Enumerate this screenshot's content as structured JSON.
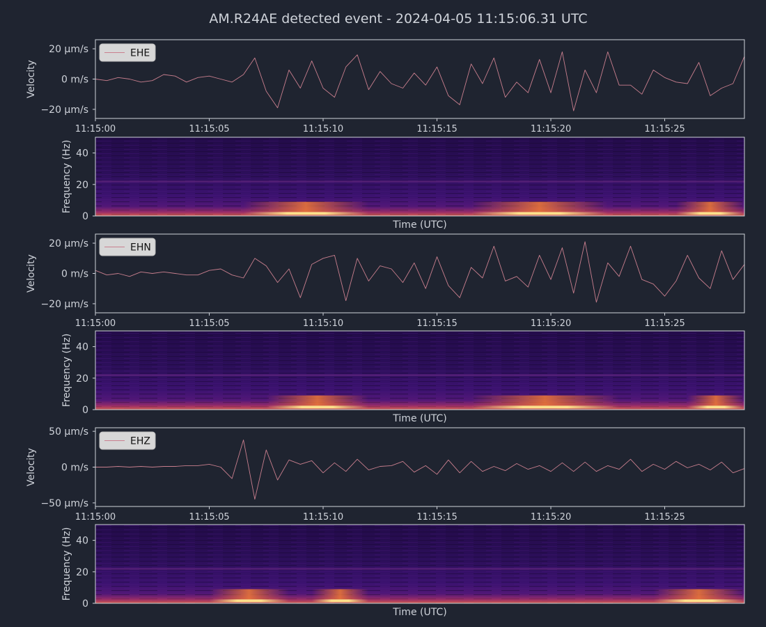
{
  "theme": {
    "background": "#1f2430",
    "axes_background": "#1f2430",
    "spine": "#cfd3da",
    "text": "#cfd3da",
    "trace": "#c97f8e",
    "legend_bg": "#d7d7d7",
    "legend_text": "#111111",
    "colormap": "inferno"
  },
  "figure": {
    "title": "AM.R24AE detected event - 2024-04-05 11:15:06.31 UTC"
  },
  "chart_data": [
    {
      "type": "line",
      "channel": "EHE",
      "ylabel": "Velocity",
      "legend": "EHE",
      "legend_position": "top-left",
      "xlim_seconds": [
        0,
        28.5
      ],
      "x_ticks": [
        0,
        5,
        10,
        15,
        20,
        25
      ],
      "x_ticklabels": [
        "11:15:00",
        "11:15:05",
        "11:15:10",
        "11:15:15",
        "11:15:20",
        "11:15:25"
      ],
      "ylim": [
        -26,
        26
      ],
      "y_ticks": [
        20,
        0,
        -20
      ],
      "y_ticklabels": [
        "20 µm/s",
        "0 m/s",
        "−20 µm/s"
      ],
      "x": [
        0,
        0.5,
        1,
        1.5,
        2,
        2.5,
        3,
        3.5,
        4,
        4.5,
        5,
        5.5,
        6,
        6.5,
        7,
        7.5,
        8,
        8.5,
        9,
        9.5,
        10,
        10.5,
        11,
        11.5,
        12,
        12.5,
        13,
        13.5,
        14,
        14.5,
        15,
        15.5,
        16,
        16.5,
        17,
        17.5,
        18,
        18.5,
        19,
        19.5,
        20,
        20.5,
        21,
        21.5,
        22,
        22.5,
        23,
        23.5,
        24,
        24.5,
        25,
        25.5,
        26,
        26.5,
        27,
        27.5,
        28,
        28.5
      ],
      "y": [
        0,
        -1,
        1,
        0,
        -2,
        -1,
        3,
        2,
        -2,
        1,
        2,
        0,
        -2,
        3,
        14,
        -8,
        -19,
        6,
        -6,
        12,
        -6,
        -12,
        8,
        16,
        -7,
        5,
        -3,
        -6,
        4,
        -4,
        8,
        -11,
        -17,
        10,
        -3,
        14,
        -12,
        -2,
        -9,
        13,
        -9,
        18,
        -21,
        6,
        -9,
        18,
        -4,
        -4,
        -10,
        6,
        1,
        -2,
        -3,
        11,
        -11,
        -6,
        -3,
        15
      ]
    },
    {
      "type": "heatmap",
      "channel": "EHE",
      "ylabel": "Frequency (Hz)",
      "xlabel": "Time (UTC)",
      "ylim": [
        0,
        50
      ],
      "y_ticks": [
        0,
        20,
        40
      ],
      "hot_bands_seconds": [
        [
          6.5,
          12.0
        ],
        [
          16.5,
          22.5
        ],
        [
          25.5,
          28.5
        ]
      ],
      "dominant_frequency_hz": 1.2
    },
    {
      "type": "line",
      "channel": "EHN",
      "ylabel": "Velocity",
      "legend": "EHN",
      "legend_position": "top-left",
      "xlim_seconds": [
        0,
        28.5
      ],
      "x_ticks": [
        0,
        5,
        10,
        15,
        20,
        25
      ],
      "x_ticklabels": [
        "11:15:00",
        "11:15:05",
        "11:15:10",
        "11:15:15",
        "11:15:20",
        "11:15:25"
      ],
      "ylim": [
        -26,
        26
      ],
      "y_ticks": [
        20,
        0,
        -20
      ],
      "y_ticklabels": [
        "20 µm/s",
        "0 m/s",
        "−20 µm/s"
      ],
      "x": [
        0,
        0.5,
        1,
        1.5,
        2,
        2.5,
        3,
        3.5,
        4,
        4.5,
        5,
        5.5,
        6,
        6.5,
        7,
        7.5,
        8,
        8.5,
        9,
        9.5,
        10,
        10.5,
        11,
        11.5,
        12,
        12.5,
        13,
        13.5,
        14,
        14.5,
        15,
        15.5,
        16,
        16.5,
        17,
        17.5,
        18,
        18.5,
        19,
        19.5,
        20,
        20.5,
        21,
        21.5,
        22,
        22.5,
        23,
        23.5,
        24,
        24.5,
        25,
        25.5,
        26,
        26.5,
        27,
        27.5,
        28,
        28.5
      ],
      "y": [
        2,
        -1,
        0,
        -2,
        1,
        0,
        1,
        0,
        -1,
        -1,
        2,
        3,
        -1,
        -3,
        10,
        5,
        -6,
        3,
        -16,
        6,
        10,
        12,
        -18,
        10,
        -5,
        5,
        3,
        -6,
        7,
        -10,
        11,
        -8,
        -16,
        4,
        -3,
        18,
        -5,
        -2,
        -9,
        12,
        -4,
        17,
        -13,
        21,
        -19,
        7,
        -2,
        18,
        -4,
        -7,
        -15,
        -5,
        12,
        -3,
        -10,
        15,
        -4,
        6
      ]
    },
    {
      "type": "heatmap",
      "channel": "EHN",
      "ylabel": "Frequency (Hz)",
      "xlabel": "Time (UTC)",
      "ylim": [
        0,
        50
      ],
      "y_ticks": [
        0,
        20,
        40
      ],
      "hot_bands_seconds": [
        [
          7.5,
          12.0
        ],
        [
          16.5,
          23.0
        ],
        [
          26.0,
          28.5
        ]
      ],
      "dominant_frequency_hz": 1.2
    },
    {
      "type": "line",
      "channel": "EHZ",
      "ylabel": "Velocity",
      "legend": "EHZ",
      "legend_position": "top-left",
      "xlim_seconds": [
        0,
        28.5
      ],
      "x_ticks": [
        0,
        5,
        10,
        15,
        20,
        25
      ],
      "x_ticklabels": [
        "11:15:00",
        "11:15:05",
        "11:15:10",
        "11:15:15",
        "11:15:20",
        "11:15:25"
      ],
      "ylim": [
        -55,
        55
      ],
      "y_ticks": [
        50,
        0,
        -50
      ],
      "y_ticklabels": [
        "50 µm/s",
        "0 m/s",
        "−50 µm/s"
      ],
      "x": [
        0,
        0.5,
        1,
        1.5,
        2,
        2.5,
        3,
        3.5,
        4,
        4.5,
        5,
        5.5,
        6,
        6.5,
        7,
        7.5,
        8,
        8.5,
        9,
        9.5,
        10,
        10.5,
        11,
        11.5,
        12,
        12.5,
        13,
        13.5,
        14,
        14.5,
        15,
        15.5,
        16,
        16.5,
        17,
        17.5,
        18,
        18.5,
        19,
        19.5,
        20,
        20.5,
        21,
        21.5,
        22,
        22.5,
        23,
        23.5,
        24,
        24.5,
        25,
        25.5,
        26,
        26.5,
        27,
        27.5,
        28,
        28.5
      ],
      "y": [
        0,
        0,
        1,
        0,
        1,
        0,
        1,
        1,
        2,
        2,
        4,
        0,
        -16,
        38,
        -45,
        24,
        -18,
        10,
        4,
        9,
        -8,
        6,
        -6,
        11,
        -4,
        1,
        2,
        8,
        -7,
        2,
        -10,
        10,
        -8,
        8,
        -6,
        1,
        -5,
        5,
        -3,
        2,
        -6,
        6,
        -6,
        7,
        -6,
        2,
        -3,
        11,
        -6,
        4,
        -3,
        8,
        -1,
        4,
        -4,
        7,
        -8,
        -2
      ]
    },
    {
      "type": "heatmap",
      "channel": "EHZ",
      "ylabel": "Frequency (Hz)",
      "xlabel": "Time (UTC)",
      "ylim": [
        0,
        50
      ],
      "y_ticks": [
        0,
        20,
        40
      ],
      "hot_bands_seconds": [
        [
          5.0,
          8.5
        ],
        [
          9.5,
          12.0
        ],
        [
          24.5,
          28.5
        ]
      ],
      "dominant_frequency_hz": 1.2
    }
  ]
}
